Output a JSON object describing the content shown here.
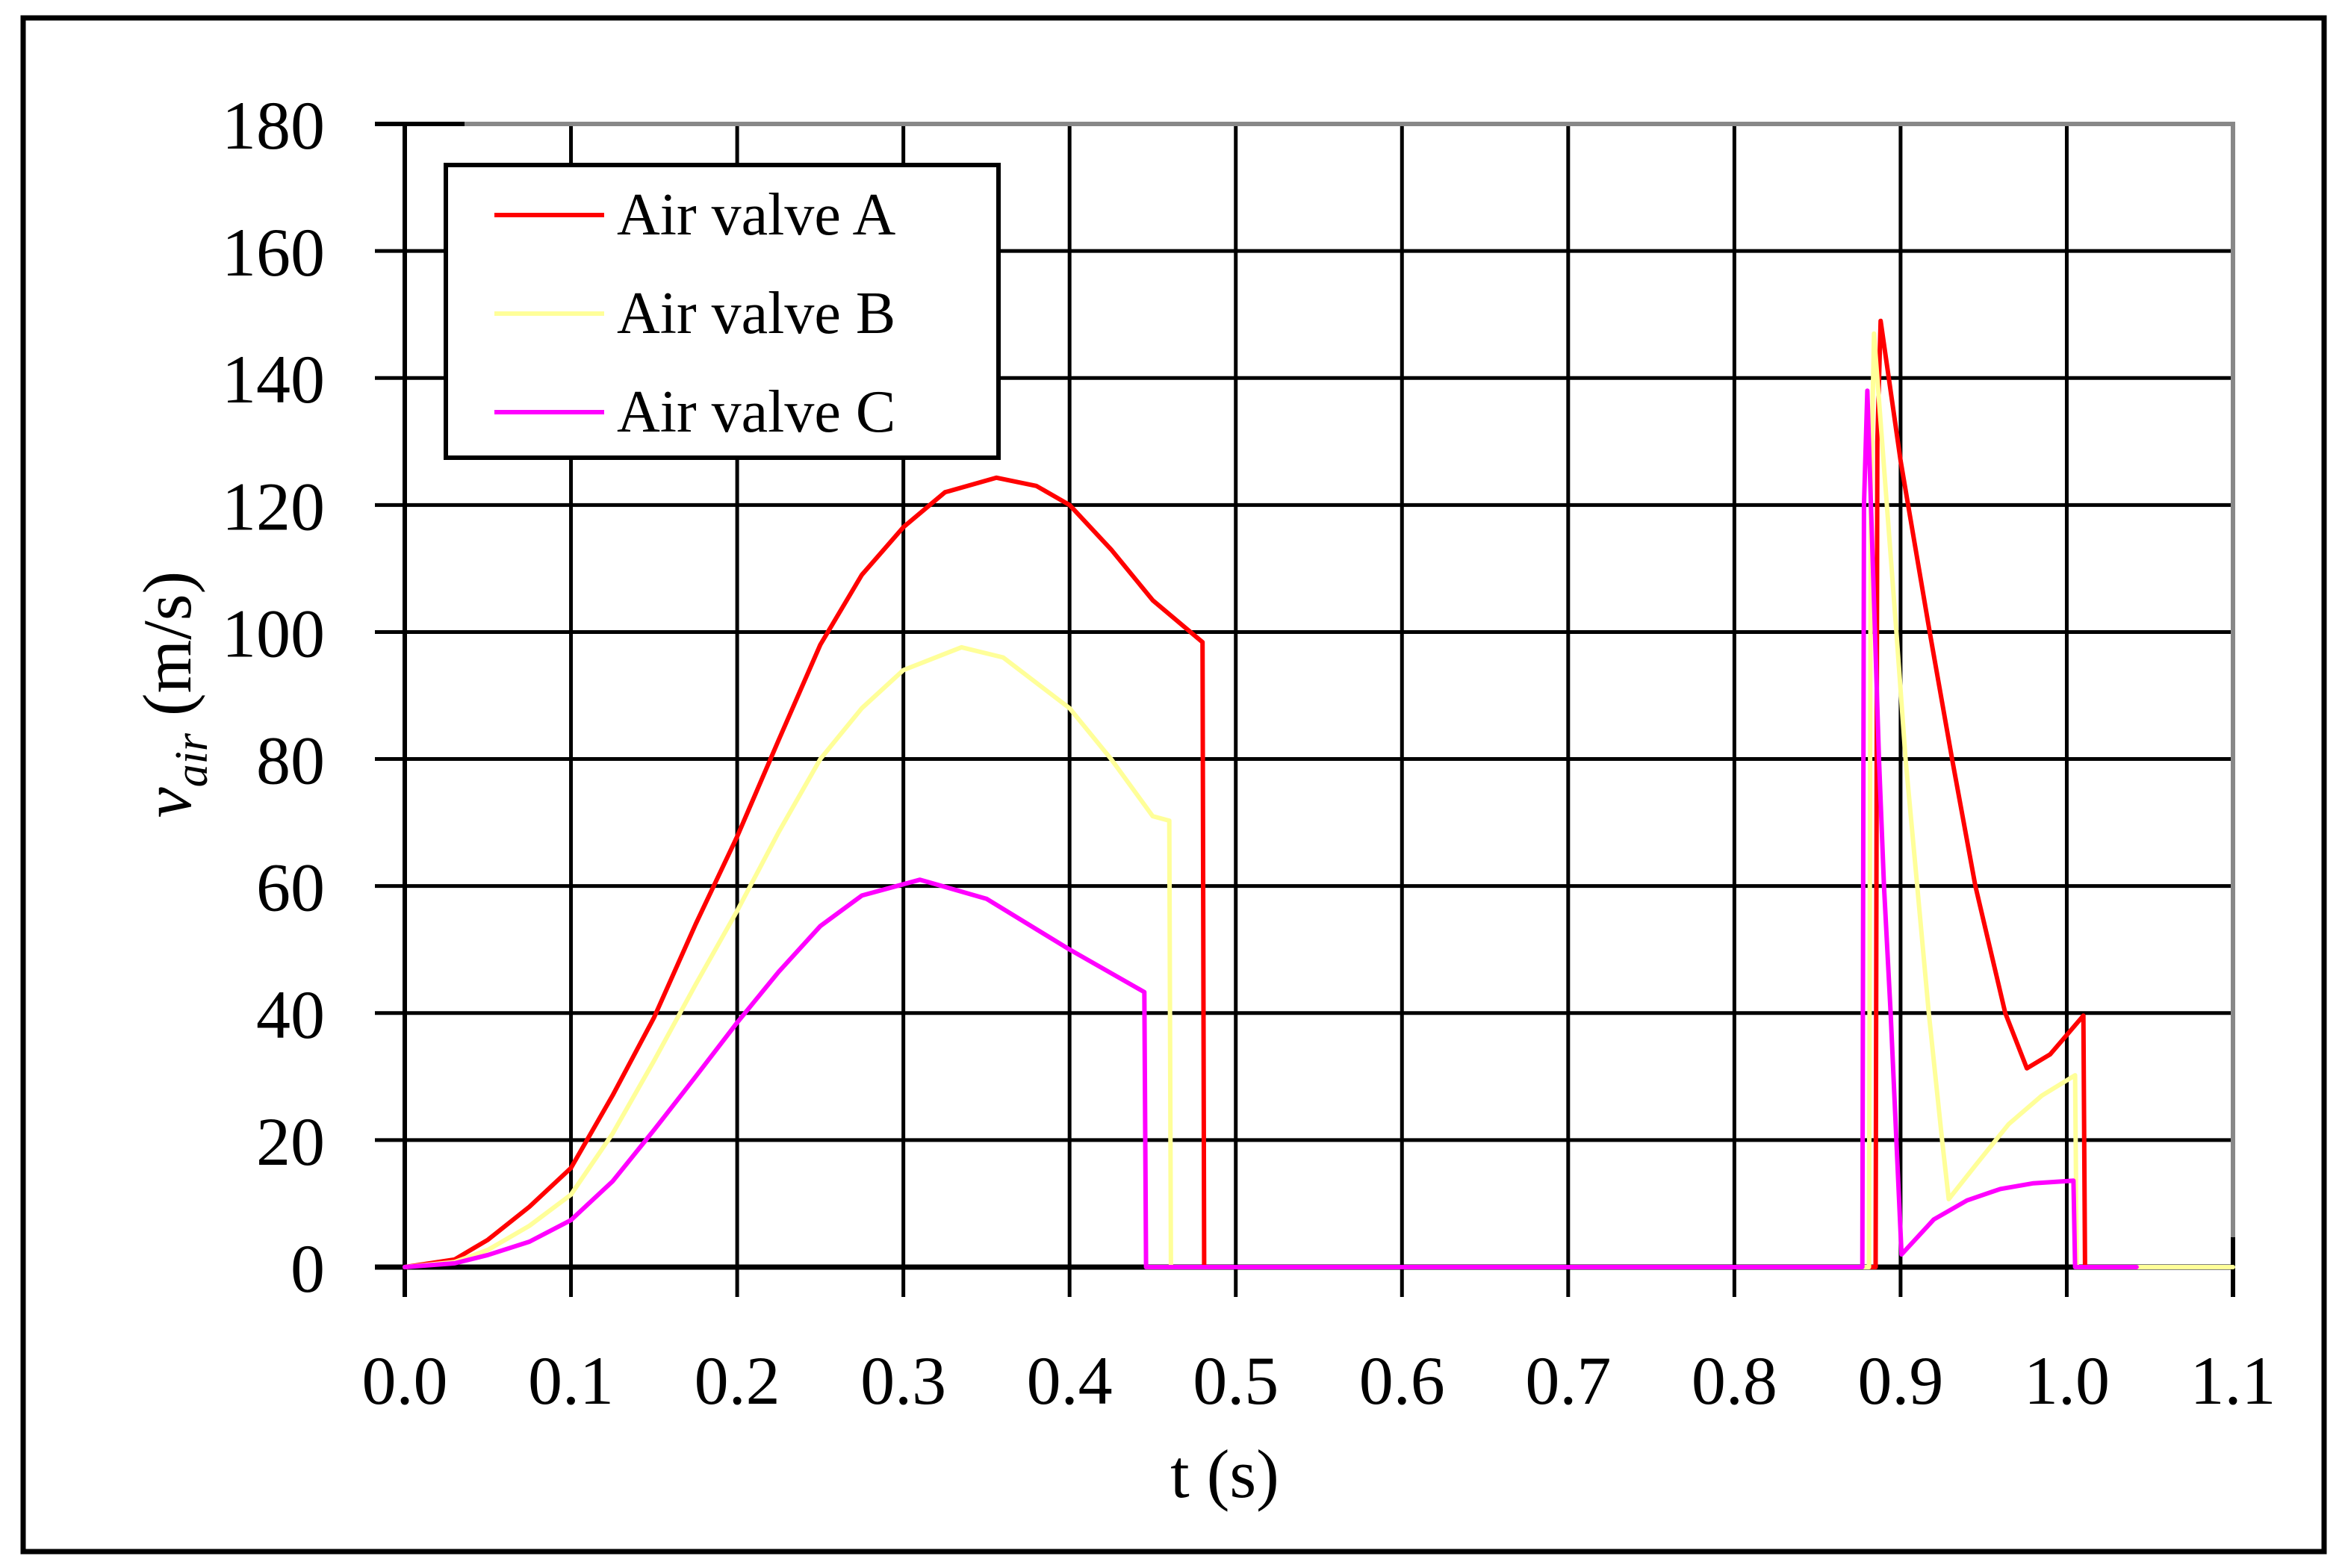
{
  "chart_data": {
    "type": "line",
    "title": "",
    "xlabel": "t (s)",
    "ylabel": "v_air (m/s)",
    "ylabel_parts": {
      "symbol": "v",
      "subscript": "air",
      "unit": " (m/s)"
    },
    "xlim": [
      0.0,
      1.1
    ],
    "ylim": [
      0,
      180
    ],
    "grid": true,
    "legend_position": "upper-left",
    "x_ticks": [
      "0.0",
      "0.1",
      "0.2",
      "0.3",
      "0.4",
      "0.5",
      "0.6",
      "0.7",
      "0.8",
      "0.9",
      "1.0",
      "1.1"
    ],
    "x_tick_values": [
      0.0,
      0.1,
      0.2,
      0.3,
      0.4,
      0.5,
      0.6,
      0.7,
      0.8,
      0.9,
      1.0,
      1.1
    ],
    "y_ticks": [
      "0",
      "20",
      "40",
      "60",
      "80",
      "100",
      "120",
      "140",
      "160",
      "180"
    ],
    "y_tick_values": [
      0,
      20,
      40,
      60,
      80,
      100,
      120,
      140,
      160,
      180
    ],
    "series": [
      {
        "name": "Air valve A",
        "color": "#FF0000",
        "x": [
          0.0,
          0.03,
          0.05,
          0.075,
          0.1,
          0.125,
          0.15,
          0.175,
          0.2,
          0.225,
          0.25,
          0.275,
          0.3,
          0.325,
          0.356,
          0.38,
          0.4,
          0.425,
          0.45,
          0.48,
          0.481,
          0.885,
          0.886,
          0.888,
          0.9,
          0.9175,
          0.931,
          0.945,
          0.963,
          0.976,
          0.99,
          1.01,
          1.011
        ],
        "y": [
          0,
          1.2,
          4.3,
          9.5,
          15.6,
          27,
          39.3,
          54,
          67.8,
          83,
          98,
          109,
          116.5,
          122,
          124.3,
          123,
          120,
          113,
          105,
          98.4,
          0,
          0,
          130,
          149,
          127,
          100,
          80,
          60,
          40,
          31.3,
          33.5,
          39.6,
          0
        ]
      },
      {
        "name": "Air valve B",
        "color": "#FFFF99",
        "x": [
          0.0,
          0.03,
          0.05,
          0.075,
          0.1,
          0.125,
          0.15,
          0.175,
          0.2,
          0.225,
          0.25,
          0.275,
          0.3,
          0.335,
          0.36,
          0.4,
          0.425,
          0.45,
          0.46,
          0.461,
          0.881,
          0.882,
          0.884,
          0.8975,
          0.903,
          0.91,
          0.917,
          0.925,
          0.929,
          0.945,
          0.965,
          0.985,
          1.005,
          1.006,
          1.1
        ],
        "y": [
          0,
          0.8,
          2.7,
          6.5,
          11.4,
          21,
          32.5,
          44.5,
          56.1,
          68.5,
          80,
          88,
          94,
          97.6,
          96,
          88,
          80,
          71,
          70.3,
          0,
          0,
          120,
          147,
          100,
          80,
          60,
          40,
          20,
          10.7,
          16,
          22.5,
          27,
          30.2,
          0,
          0
        ]
      },
      {
        "name": "Air valve C",
        "color": "#FF00FF",
        "x": [
          0.0,
          0.03,
          0.05,
          0.075,
          0.1,
          0.125,
          0.15,
          0.175,
          0.2,
          0.225,
          0.25,
          0.275,
          0.31,
          0.35,
          0.4,
          0.445,
          0.446,
          0.877,
          0.878,
          0.88,
          0.887,
          0.89,
          0.894,
          0.9006,
          0.92,
          0.94,
          0.96,
          0.98,
          1.004,
          1.005,
          1.042
        ],
        "y": [
          0,
          0.6,
          1.9,
          4,
          7.4,
          13.5,
          21.6,
          30,
          38.5,
          46.5,
          53.7,
          58.5,
          61,
          58,
          50,
          43.3,
          0,
          0,
          120,
          138,
          80,
          60,
          40,
          2,
          7.5,
          10.5,
          12.3,
          13.2,
          13.6,
          0,
          0
        ]
      }
    ]
  },
  "legend": {
    "items": [
      {
        "label": "Air valve A",
        "color": "#FF0000"
      },
      {
        "label": "Air valve B",
        "color": "#FFFF99"
      },
      {
        "label": "Air valve C",
        "color": "#FF00FF"
      }
    ]
  },
  "axes": {
    "x_label": "t (s)",
    "y_label_symbol": "v",
    "y_label_subscript": "air",
    "y_label_unit": " (m/s)"
  },
  "colors": {
    "frame": "#000000",
    "grid": "#000000",
    "plot_border": "#888888",
    "background": "#FFFFFF"
  }
}
